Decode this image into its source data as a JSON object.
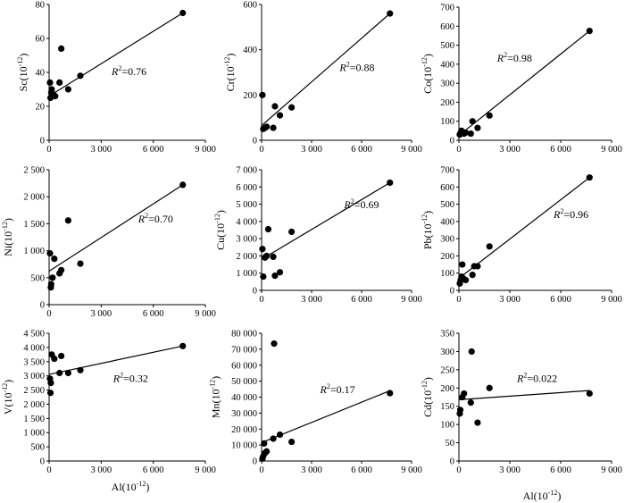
{
  "figure": {
    "x_axis_label": "Al(10",
    "x_axis_label_exp": "-12",
    "x_axis_label_close": ")"
  },
  "chart_data": [
    {
      "type": "scatter",
      "ylabel": "Sc",
      "r2": "=0.76",
      "xlim": [
        0,
        9000
      ],
      "ylim": [
        0,
        80
      ],
      "xticks": [
        0,
        3000,
        6000,
        9000
      ],
      "xtick_labels": [
        "0",
        "3 000",
        "6 000",
        "9 000"
      ],
      "yticks": [
        0,
        20,
        40,
        60,
        80
      ],
      "ytick_labels": [
        "0",
        "20",
        "40",
        "60",
        "80"
      ],
      "points": [
        [
          50,
          34
        ],
        [
          80,
          25
        ],
        [
          120,
          28
        ],
        [
          150,
          30
        ],
        [
          250,
          27
        ],
        [
          350,
          26
        ],
        [
          600,
          34
        ],
        [
          700,
          54
        ],
        [
          1100,
          30
        ],
        [
          1800,
          38
        ],
        [
          7700,
          75
        ]
      ],
      "fit": [
        [
          0,
          26
        ],
        [
          7700,
          75
        ]
      ]
    },
    {
      "type": "scatter",
      "ylabel": "Cr",
      "r2": "=0.88",
      "xlim": [
        0,
        9000
      ],
      "ylim": [
        0,
        600
      ],
      "xticks": [
        0,
        3000,
        6000,
        9000
      ],
      "xtick_labels": [
        "0",
        "3 000",
        "6 000",
        "9 000"
      ],
      "yticks": [
        0,
        200,
        400,
        600
      ],
      "ytick_labels": [
        "0",
        "200",
        "400",
        "600"
      ],
      "points": [
        [
          50,
          200
        ],
        [
          100,
          50
        ],
        [
          200,
          55
        ],
        [
          300,
          60
        ],
        [
          700,
          55
        ],
        [
          800,
          150
        ],
        [
          1100,
          110
        ],
        [
          1800,
          145
        ],
        [
          7700,
          560
        ]
      ],
      "fit": [
        [
          0,
          65
        ],
        [
          7700,
          560
        ]
      ]
    },
    {
      "type": "scatter",
      "ylabel": "Co",
      "r2": "=0.98",
      "xlim": [
        0,
        9000
      ],
      "ylim": [
        0,
        700
      ],
      "xticks": [
        0,
        3000,
        6000,
        9000
      ],
      "xtick_labels": [
        "0",
        "3 000",
        "6 000",
        "9 000"
      ],
      "yticks": [
        0,
        100,
        200,
        300,
        400,
        500,
        600,
        700
      ],
      "ytick_labels": [
        "0",
        "100",
        "200",
        "300",
        "400",
        "500",
        "600",
        "700"
      ],
      "points": [
        [
          50,
          30
        ],
        [
          100,
          40
        ],
        [
          150,
          50
        ],
        [
          200,
          45
        ],
        [
          300,
          35
        ],
        [
          400,
          40
        ],
        [
          700,
          35
        ],
        [
          800,
          100
        ],
        [
          1100,
          65
        ],
        [
          1800,
          130
        ],
        [
          7700,
          575
        ]
      ],
      "fit": [
        [
          0,
          25
        ],
        [
          7700,
          575
        ]
      ]
    },
    {
      "type": "scatter",
      "ylabel": "Ni",
      "r2": "=0.70",
      "xlim": [
        0,
        9000
      ],
      "ylim": [
        0,
        2500
      ],
      "xticks": [
        0,
        3000,
        6000,
        9000
      ],
      "xtick_labels": [
        "0",
        "3 000",
        "6 000",
        "9 000"
      ],
      "yticks": [
        0,
        500,
        1000,
        1500,
        2000,
        2500
      ],
      "ytick_labels": [
        "0",
        "500",
        "1 000",
        "1 500",
        "2 000",
        "2 500"
      ],
      "points": [
        [
          50,
          950
        ],
        [
          100,
          320
        ],
        [
          120,
          380
        ],
        [
          200,
          500
        ],
        [
          300,
          850
        ],
        [
          600,
          580
        ],
        [
          700,
          640
        ],
        [
          1100,
          1560
        ],
        [
          1800,
          760
        ],
        [
          7700,
          2220
        ]
      ],
      "fit": [
        [
          0,
          620
        ],
        [
          7700,
          2220
        ]
      ]
    },
    {
      "type": "scatter",
      "ylabel": "Cu",
      "r2": "=0.69",
      "xlim": [
        0,
        9000
      ],
      "ylim": [
        0,
        7000
      ],
      "xticks": [
        0,
        3000,
        6000,
        9000
      ],
      "xtick_labels": [
        "0",
        "3 000",
        "6 000",
        "9 000"
      ],
      "yticks": [
        0,
        1000,
        2000,
        3000,
        4000,
        5000,
        6000,
        7000
      ],
      "ytick_labels": [
        "0",
        "1 000",
        "2 000",
        "3 000",
        "4 000",
        "5 000",
        "6 000",
        "7 000"
      ],
      "points": [
        [
          50,
          2400
        ],
        [
          100,
          800
        ],
        [
          200,
          1900
        ],
        [
          300,
          2000
        ],
        [
          400,
          3550
        ],
        [
          700,
          1950
        ],
        [
          800,
          850
        ],
        [
          1100,
          1050
        ],
        [
          1800,
          3400
        ],
        [
          7700,
          6250
        ]
      ],
      "fit": [
        [
          0,
          1800
        ],
        [
          7700,
          6250
        ]
      ]
    },
    {
      "type": "scatter",
      "ylabel": "Pb",
      "r2": "=0.96",
      "xlim": [
        0,
        9000
      ],
      "ylim": [
        0,
        700
      ],
      "xticks": [
        0,
        3000,
        6000,
        9000
      ],
      "xtick_labels": [
        "0",
        "3 000",
        "6 000",
        "9 000"
      ],
      "yticks": [
        0,
        100,
        200,
        300,
        400,
        500,
        600,
        700
      ],
      "ytick_labels": [
        "0",
        "100",
        "200",
        "300",
        "400",
        "500",
        "600",
        "700"
      ],
      "points": [
        [
          50,
          40
        ],
        [
          100,
          60
        ],
        [
          150,
          80
        ],
        [
          200,
          150
        ],
        [
          250,
          70
        ],
        [
          400,
          60
        ],
        [
          800,
          90
        ],
        [
          900,
          140
        ],
        [
          1100,
          140
        ],
        [
          1800,
          255
        ],
        [
          7700,
          655
        ]
      ],
      "fit": [
        [
          0,
          70
        ],
        [
          7700,
          655
        ]
      ]
    },
    {
      "type": "scatter",
      "ylabel": "V",
      "r2": "=0.32",
      "xlim": [
        0,
        9000
      ],
      "ylim": [
        0,
        4500
      ],
      "xticks": [
        0,
        3000,
        6000,
        9000
      ],
      "xtick_labels": [
        "0",
        "3 000",
        "6 000",
        "9 000"
      ],
      "yticks": [
        0,
        500,
        1000,
        1500,
        2000,
        2500,
        3000,
        3500,
        4000,
        4500
      ],
      "ytick_labels": [
        "0",
        "500",
        "1 000",
        "1 500",
        "2 000",
        "2 500",
        "3 000",
        "3 500",
        "4 000",
        "4 500"
      ],
      "points": [
        [
          50,
          2900
        ],
        [
          80,
          2400
        ],
        [
          100,
          2750
        ],
        [
          150,
          3750
        ],
        [
          300,
          3600
        ],
        [
          600,
          3100
        ],
        [
          700,
          3700
        ],
        [
          1100,
          3100
        ],
        [
          1800,
          3200
        ],
        [
          7700,
          4050
        ]
      ],
      "fit": [
        [
          0,
          3050
        ],
        [
          7700,
          4050
        ]
      ]
    },
    {
      "type": "scatter",
      "ylabel": "Mn",
      "r2": "=0.17",
      "xlim": [
        0,
        9000
      ],
      "ylim": [
        0,
        80000
      ],
      "xticks": [
        0,
        3000,
        6000,
        9000
      ],
      "xtick_labels": [
        "0",
        "3 000",
        "6 000",
        "9 000"
      ],
      "yticks": [
        0,
        10000,
        20000,
        30000,
        40000,
        50000,
        60000,
        70000,
        80000
      ],
      "ytick_labels": [
        "0",
        "10 000",
        "20 000",
        "30 000",
        "40 000",
        "50 000",
        "60 000",
        "70 000",
        "80 000"
      ],
      "points": [
        [
          50,
          1500
        ],
        [
          100,
          3000
        ],
        [
          150,
          11000
        ],
        [
          200,
          5000
        ],
        [
          300,
          6000
        ],
        [
          700,
          14000
        ],
        [
          750,
          73500
        ],
        [
          1100,
          16500
        ],
        [
          1800,
          12000
        ],
        [
          7700,
          42500
        ]
      ],
      "fit": [
        [
          0,
          11500
        ],
        [
          7700,
          44000
        ]
      ]
    },
    {
      "type": "scatter",
      "ylabel": "Cd",
      "r2": "=0.022",
      "xlim": [
        0,
        9000
      ],
      "ylim": [
        0,
        350
      ],
      "xticks": [
        0,
        3000,
        6000,
        9000
      ],
      "xtick_labels": [
        "0",
        "3 000",
        "6 000",
        "9 000"
      ],
      "yticks": [
        0,
        50,
        100,
        150,
        200,
        250,
        300,
        350
      ],
      "ytick_labels": [
        "0",
        "50",
        "100",
        "150",
        "200",
        "250",
        "300",
        "350"
      ],
      "points": [
        [
          50,
          130
        ],
        [
          80,
          140
        ],
        [
          200,
          175
        ],
        [
          300,
          185
        ],
        [
          700,
          160
        ],
        [
          750,
          300
        ],
        [
          1100,
          105
        ],
        [
          1800,
          200
        ],
        [
          7700,
          185
        ]
      ],
      "fit": [
        [
          0,
          168
        ],
        [
          7700,
          193
        ]
      ]
    }
  ]
}
